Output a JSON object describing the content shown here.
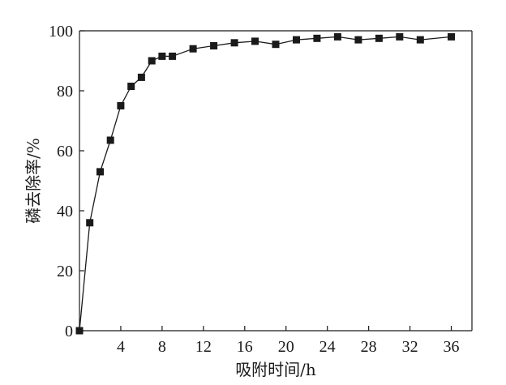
{
  "chart_data": {
    "type": "line",
    "xlabel": "吸附时间/h",
    "ylabel": "磷去除率/%",
    "xlim": [
      0,
      38
    ],
    "ylim": [
      0,
      100
    ],
    "x_ticks": [
      4,
      8,
      12,
      16,
      20,
      24,
      28,
      32,
      36
    ],
    "y_ticks": [
      0,
      20,
      40,
      60,
      80,
      100
    ],
    "grid": false,
    "marker": "square",
    "series": [
      {
        "x": [
          0,
          1,
          2,
          3,
          4,
          5,
          6,
          7,
          8,
          9,
          11,
          13,
          15,
          17,
          19,
          21,
          23,
          25,
          27,
          29,
          31,
          33,
          36
        ],
        "y": [
          0,
          36,
          53,
          63.5,
          75,
          81.5,
          84.5,
          90,
          91.5,
          91.5,
          94,
          95,
          96,
          96.5,
          95.5,
          97,
          97.5,
          98,
          97,
          97.5,
          98,
          97,
          98
        ],
        "color": "#1a1a1a"
      }
    ]
  }
}
